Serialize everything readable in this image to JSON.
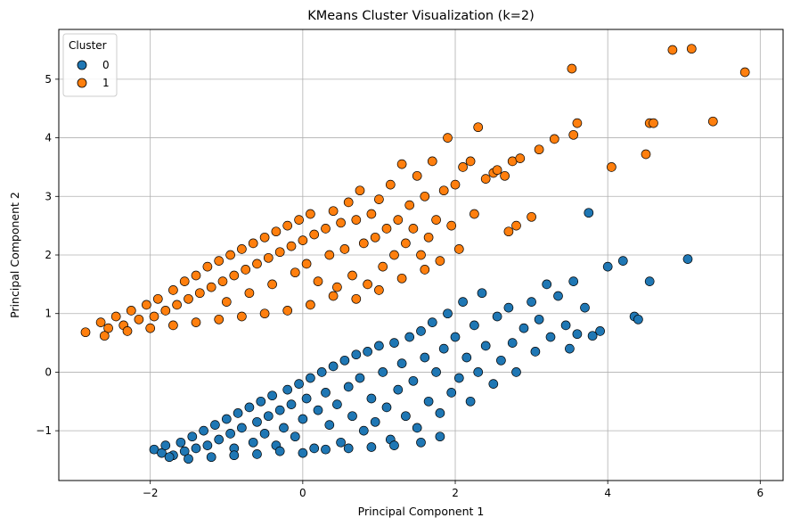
{
  "chart_data": {
    "type": "scatter",
    "title": "KMeans Cluster Visualization (k=2)",
    "xlabel": "Principal Component 1",
    "ylabel": "Principal Component 2",
    "xlim": [
      -3.2,
      6.3
    ],
    "ylim": [
      -1.85,
      5.85
    ],
    "xticks": [
      -2,
      0,
      2,
      4,
      6
    ],
    "yticks": [
      -1,
      0,
      1,
      2,
      3,
      4,
      5
    ],
    "xtick_labels": [
      "−2",
      "0",
      "2",
      "4",
      "6"
    ],
    "ytick_labels": [
      "−1",
      "0",
      "1",
      "2",
      "3",
      "4",
      "5"
    ],
    "grid": true,
    "legend": {
      "title": "Cluster",
      "position": "top-left",
      "entries": [
        {
          "label": "0",
          "color": "#1f77b4"
        },
        {
          "label": "1",
          "color": "#ff7f0e"
        }
      ]
    },
    "marker_edge_color": "#000000",
    "series": [
      {
        "name": "0",
        "color": "#1f77b4",
        "points": [
          [
            -1.95,
            -1.32
          ],
          [
            -1.85,
            -1.38
          ],
          [
            -1.8,
            -1.25
          ],
          [
            -1.7,
            -1.42
          ],
          [
            -1.6,
            -1.2
          ],
          [
            -1.55,
            -1.35
          ],
          [
            -1.45,
            -1.1
          ],
          [
            -1.4,
            -1.3
          ],
          [
            -1.3,
            -1.0
          ],
          [
            -1.25,
            -1.25
          ],
          [
            -1.15,
            -0.9
          ],
          [
            -1.1,
            -1.15
          ],
          [
            -1.0,
            -0.8
          ],
          [
            -0.95,
            -1.05
          ],
          [
            -0.9,
            -1.3
          ],
          [
            -0.85,
            -0.7
          ],
          [
            -0.8,
            -0.95
          ],
          [
            -0.7,
            -0.6
          ],
          [
            -0.65,
            -1.2
          ],
          [
            -0.6,
            -0.85
          ],
          [
            -0.55,
            -0.5
          ],
          [
            -0.5,
            -1.05
          ],
          [
            -0.45,
            -0.75
          ],
          [
            -0.4,
            -0.4
          ],
          [
            -0.35,
            -1.25
          ],
          [
            -0.3,
            -0.65
          ],
          [
            -0.25,
            -0.95
          ],
          [
            -0.2,
            -0.3
          ],
          [
            -0.15,
            -0.55
          ],
          [
            -0.1,
            -1.1
          ],
          [
            -0.05,
            -0.2
          ],
          [
            0.0,
            -0.8
          ],
          [
            0.05,
            -0.45
          ],
          [
            0.1,
            -0.1
          ],
          [
            0.15,
            -1.3
          ],
          [
            0.2,
            -0.65
          ],
          [
            0.25,
            0.0
          ],
          [
            0.3,
            -0.35
          ],
          [
            0.35,
            -0.9
          ],
          [
            0.4,
            0.1
          ],
          [
            0.45,
            -0.55
          ],
          [
            0.5,
            -1.2
          ],
          [
            0.55,
            0.2
          ],
          [
            0.6,
            -0.25
          ],
          [
            0.65,
            -0.75
          ],
          [
            0.7,
            0.3
          ],
          [
            0.75,
            -0.1
          ],
          [
            0.8,
            -1.0
          ],
          [
            0.85,
            0.35
          ],
          [
            0.9,
            -0.45
          ],
          [
            0.95,
            -0.85
          ],
          [
            1.0,
            0.45
          ],
          [
            1.05,
            0.0
          ],
          [
            1.1,
            -0.6
          ],
          [
            1.15,
            -1.15
          ],
          [
            1.2,
            0.5
          ],
          [
            1.25,
            -0.3
          ],
          [
            1.3,
            0.15
          ],
          [
            1.35,
            -0.75
          ],
          [
            1.4,
            0.6
          ],
          [
            1.45,
            -0.15
          ],
          [
            1.5,
            -0.95
          ],
          [
            1.55,
            0.7
          ],
          [
            1.6,
            0.25
          ],
          [
            1.65,
            -0.5
          ],
          [
            1.7,
            0.85
          ],
          [
            1.75,
            0.0
          ],
          [
            1.8,
            -0.7
          ],
          [
            1.85,
            0.4
          ],
          [
            1.9,
            1.0
          ],
          [
            1.95,
            -0.35
          ],
          [
            2.0,
            0.6
          ],
          [
            2.05,
            -0.1
          ],
          [
            2.1,
            1.2
          ],
          [
            2.15,
            0.25
          ],
          [
            2.2,
            -0.5
          ],
          [
            2.25,
            0.8
          ],
          [
            2.3,
            0.0
          ],
          [
            2.35,
            1.35
          ],
          [
            2.4,
            0.45
          ],
          [
            2.5,
            -0.2
          ],
          [
            2.55,
            0.95
          ],
          [
            2.6,
            0.2
          ],
          [
            2.7,
            1.1
          ],
          [
            2.75,
            0.5
          ],
          [
            2.8,
            0.0
          ],
          [
            2.9,
            0.75
          ],
          [
            3.0,
            1.2
          ],
          [
            3.05,
            0.35
          ],
          [
            3.1,
            0.9
          ],
          [
            3.2,
            1.5
          ],
          [
            3.25,
            0.6
          ],
          [
            3.35,
            1.3
          ],
          [
            3.45,
            0.8
          ],
          [
            3.5,
            0.4
          ],
          [
            3.55,
            1.55
          ],
          [
            3.6,
            0.65
          ],
          [
            3.7,
            1.1
          ],
          [
            3.75,
            2.72
          ],
          [
            3.8,
            0.62
          ],
          [
            3.9,
            0.7
          ],
          [
            4.0,
            1.8
          ],
          [
            4.2,
            1.9
          ],
          [
            4.35,
            0.95
          ],
          [
            4.4,
            0.9
          ],
          [
            4.55,
            1.55
          ],
          [
            5.05,
            1.93
          ],
          [
            -1.75,
            -1.45
          ],
          [
            -1.5,
            -1.48
          ],
          [
            -1.2,
            -1.45
          ],
          [
            -0.9,
            -1.42
          ],
          [
            -0.6,
            -1.4
          ],
          [
            -0.3,
            -1.35
          ],
          [
            0.0,
            -1.38
          ],
          [
            0.3,
            -1.32
          ],
          [
            0.6,
            -1.3
          ],
          [
            0.9,
            -1.28
          ],
          [
            1.2,
            -1.25
          ],
          [
            1.55,
            -1.2
          ],
          [
            1.8,
            -1.1
          ]
        ]
      },
      {
        "name": "1",
        "color": "#ff7f0e",
        "points": [
          [
            -2.85,
            0.68
          ],
          [
            -2.65,
            0.85
          ],
          [
            -2.55,
            0.75
          ],
          [
            -2.45,
            0.95
          ],
          [
            -2.35,
            0.8
          ],
          [
            -2.25,
            1.05
          ],
          [
            -2.15,
            0.9
          ],
          [
            -2.05,
            1.15
          ],
          [
            -1.95,
            0.95
          ],
          [
            -1.9,
            1.25
          ],
          [
            -1.8,
            1.05
          ],
          [
            -1.7,
            1.4
          ],
          [
            -1.65,
            1.15
          ],
          [
            -1.55,
            1.55
          ],
          [
            -1.5,
            1.25
          ],
          [
            -1.4,
            1.65
          ],
          [
            -1.35,
            1.35
          ],
          [
            -1.25,
            1.8
          ],
          [
            -1.2,
            1.45
          ],
          [
            -1.1,
            1.9
          ],
          [
            -1.05,
            1.55
          ],
          [
            -1.0,
            1.2
          ],
          [
            -0.95,
            2.0
          ],
          [
            -0.9,
            1.65
          ],
          [
            -0.8,
            2.1
          ],
          [
            -0.75,
            1.75
          ],
          [
            -0.7,
            1.35
          ],
          [
            -0.65,
            2.2
          ],
          [
            -0.6,
            1.85
          ],
          [
            -0.5,
            2.3
          ],
          [
            -0.45,
            1.95
          ],
          [
            -0.4,
            1.5
          ],
          [
            -0.35,
            2.4
          ],
          [
            -0.3,
            2.05
          ],
          [
            -0.2,
            2.5
          ],
          [
            -0.15,
            2.15
          ],
          [
            -0.1,
            1.7
          ],
          [
            -0.05,
            2.6
          ],
          [
            0.0,
            2.25
          ],
          [
            0.05,
            1.85
          ],
          [
            0.1,
            2.7
          ],
          [
            0.15,
            2.35
          ],
          [
            0.2,
            1.55
          ],
          [
            0.3,
            2.45
          ],
          [
            0.35,
            2.0
          ],
          [
            0.4,
            2.75
          ],
          [
            0.45,
            1.45
          ],
          [
            0.5,
            2.55
          ],
          [
            0.55,
            2.1
          ],
          [
            0.6,
            2.9
          ],
          [
            0.65,
            1.65
          ],
          [
            0.7,
            2.6
          ],
          [
            0.75,
            3.1
          ],
          [
            0.8,
            2.2
          ],
          [
            0.85,
            1.5
          ],
          [
            0.9,
            2.7
          ],
          [
            0.95,
            2.3
          ],
          [
            1.0,
            2.95
          ],
          [
            1.05,
            1.8
          ],
          [
            1.1,
            2.45
          ],
          [
            1.15,
            3.2
          ],
          [
            1.2,
            2.0
          ],
          [
            1.25,
            2.6
          ],
          [
            1.3,
            3.55
          ],
          [
            1.35,
            2.2
          ],
          [
            1.4,
            2.85
          ],
          [
            1.45,
            2.45
          ],
          [
            1.5,
            3.35
          ],
          [
            1.55,
            2.0
          ],
          [
            1.6,
            3.0
          ],
          [
            1.65,
            2.3
          ],
          [
            1.7,
            3.6
          ],
          [
            1.75,
            2.6
          ],
          [
            1.8,
            1.9
          ],
          [
            1.85,
            3.1
          ],
          [
            1.9,
            4.0
          ],
          [
            1.95,
            2.5
          ],
          [
            2.0,
            3.2
          ],
          [
            2.05,
            2.1
          ],
          [
            2.1,
            3.5
          ],
          [
            2.2,
            3.6
          ],
          [
            2.25,
            2.7
          ],
          [
            2.3,
            4.18
          ],
          [
            2.4,
            3.3
          ],
          [
            2.5,
            3.4
          ],
          [
            2.55,
            3.45
          ],
          [
            2.65,
            3.35
          ],
          [
            2.7,
            2.4
          ],
          [
            2.75,
            3.6
          ],
          [
            2.8,
            2.5
          ],
          [
            2.85,
            3.65
          ],
          [
            3.0,
            2.65
          ],
          [
            3.1,
            3.8
          ],
          [
            3.3,
            3.98
          ],
          [
            3.55,
            4.05
          ],
          [
            3.6,
            4.25
          ],
          [
            4.05,
            3.5
          ],
          [
            4.5,
            3.72
          ],
          [
            4.55,
            4.25
          ],
          [
            4.6,
            4.25
          ],
          [
            3.53,
            5.18
          ],
          [
            4.85,
            5.5
          ],
          [
            5.1,
            5.52
          ],
          [
            5.38,
            4.28
          ],
          [
            5.8,
            5.12
          ],
          [
            -2.6,
            0.62
          ],
          [
            -2.3,
            0.7
          ],
          [
            -2.0,
            0.75
          ],
          [
            -1.7,
            0.8
          ],
          [
            -1.4,
            0.85
          ],
          [
            -1.1,
            0.9
          ],
          [
            -0.8,
            0.95
          ],
          [
            -0.5,
            1.0
          ],
          [
            -0.2,
            1.05
          ],
          [
            0.1,
            1.15
          ],
          [
            0.4,
            1.3
          ],
          [
            0.7,
            1.25
          ],
          [
            1.0,
            1.4
          ],
          [
            1.3,
            1.6
          ],
          [
            1.6,
            1.75
          ]
        ]
      }
    ]
  }
}
